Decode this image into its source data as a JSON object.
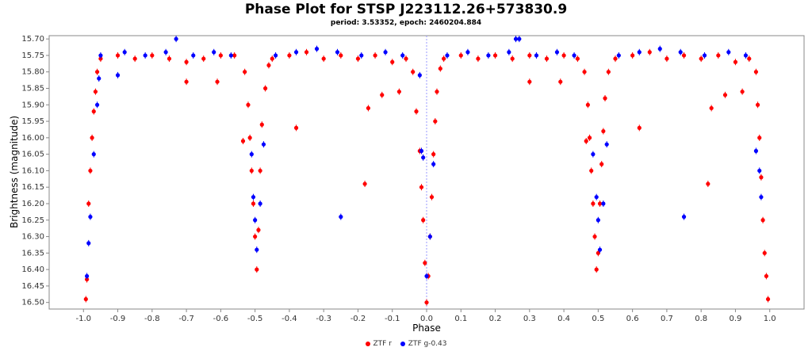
{
  "chart_data": {
    "type": "scatter",
    "title": "Phase Plot for STSP J223112.26+573830.9",
    "subtitle": "period: 3.53352, epoch: 2460204.884",
    "xlabel": "Phase",
    "ylabel": "Brightness (magnitude)",
    "xlim": [
      -1.1,
      1.1
    ],
    "ylim": [
      15.69,
      16.52
    ],
    "y_inverted": true,
    "x_ticks": [
      "-1.0",
      "-0.9",
      "-0.8",
      "-0.7",
      "-0.6",
      "-0.5",
      "-0.4",
      "-0.3",
      "-0.2",
      "-0.1",
      "0.0",
      "0.1",
      "0.2",
      "0.3",
      "0.4",
      "0.5",
      "0.6",
      "0.7",
      "0.8",
      "0.9",
      "1.0"
    ],
    "y_ticks": [
      "15.70",
      "15.75",
      "15.80",
      "15.85",
      "15.90",
      "15.95",
      "16.00",
      "16.05",
      "16.10",
      "16.15",
      "16.20",
      "16.25",
      "16.30",
      "16.35",
      "16.40",
      "16.45",
      "16.50"
    ],
    "reference_line_x": 0.0,
    "legend_position": "bottom-center",
    "series": [
      {
        "name": "ZTF r",
        "color": "#ff0000",
        "points": [
          [
            -0.95,
            15.76
          ],
          [
            -0.9,
            15.75
          ],
          [
            -0.85,
            15.76
          ],
          [
            -0.8,
            15.75
          ],
          [
            -0.75,
            15.76
          ],
          [
            -0.7,
            15.77
          ],
          [
            -0.65,
            15.76
          ],
          [
            -0.6,
            15.75
          ],
          [
            -0.56,
            15.75
          ],
          [
            -0.45,
            15.76
          ],
          [
            -0.4,
            15.75
          ],
          [
            -0.35,
            15.74
          ],
          [
            -0.3,
            15.76
          ],
          [
            -0.25,
            15.75
          ],
          [
            -0.2,
            15.76
          ],
          [
            -0.15,
            15.75
          ],
          [
            -0.1,
            15.77
          ],
          [
            -0.06,
            15.76
          ],
          [
            0.05,
            15.76
          ],
          [
            0.1,
            15.75
          ],
          [
            0.15,
            15.76
          ],
          [
            0.2,
            15.75
          ],
          [
            0.25,
            15.76
          ],
          [
            0.3,
            15.75
          ],
          [
            0.35,
            15.76
          ],
          [
            0.4,
            15.75
          ],
          [
            0.44,
            15.76
          ],
          [
            0.55,
            15.76
          ],
          [
            0.6,
            15.75
          ],
          [
            0.65,
            15.74
          ],
          [
            0.7,
            15.76
          ],
          [
            0.75,
            15.75
          ],
          [
            0.8,
            15.76
          ],
          [
            0.85,
            15.75
          ],
          [
            0.9,
            15.77
          ],
          [
            0.94,
            15.76
          ],
          [
            -0.993,
            16.49
          ],
          [
            -0.99,
            16.43
          ],
          [
            -0.985,
            16.2
          ],
          [
            -0.98,
            16.1
          ],
          [
            -0.975,
            16.0
          ],
          [
            -0.97,
            15.92
          ],
          [
            -0.965,
            15.86
          ],
          [
            -0.96,
            15.8
          ],
          [
            -0.53,
            15.8
          ],
          [
            -0.52,
            15.9
          ],
          [
            -0.515,
            16.0
          ],
          [
            -0.51,
            16.1
          ],
          [
            -0.505,
            16.2
          ],
          [
            -0.5,
            16.3
          ],
          [
            -0.495,
            16.4
          ],
          [
            -0.49,
            16.28
          ],
          [
            -0.485,
            16.1
          ],
          [
            -0.48,
            15.96
          ],
          [
            -0.47,
            15.85
          ],
          [
            -0.46,
            15.78
          ],
          [
            -0.04,
            15.8
          ],
          [
            -0.03,
            15.92
          ],
          [
            -0.02,
            16.04
          ],
          [
            -0.015,
            16.15
          ],
          [
            -0.01,
            16.25
          ],
          [
            -0.005,
            16.38
          ],
          [
            0.0,
            16.5
          ],
          [
            0.005,
            16.42
          ],
          [
            0.01,
            16.3
          ],
          [
            0.015,
            16.18
          ],
          [
            0.02,
            16.05
          ],
          [
            0.025,
            15.95
          ],
          [
            0.03,
            15.86
          ],
          [
            0.04,
            15.79
          ],
          [
            0.46,
            15.8
          ],
          [
            0.47,
            15.9
          ],
          [
            0.475,
            16.0
          ],
          [
            0.48,
            16.1
          ],
          [
            0.485,
            16.2
          ],
          [
            0.49,
            16.3
          ],
          [
            0.495,
            16.4
          ],
          [
            0.5,
            16.35
          ],
          [
            0.505,
            16.2
          ],
          [
            0.51,
            16.08
          ],
          [
            0.515,
            15.98
          ],
          [
            0.52,
            15.88
          ],
          [
            0.53,
            15.8
          ],
          [
            0.96,
            15.8
          ],
          [
            0.965,
            15.9
          ],
          [
            0.97,
            16.0
          ],
          [
            0.975,
            16.12
          ],
          [
            0.98,
            16.25
          ],
          [
            0.985,
            16.35
          ],
          [
            0.99,
            16.42
          ],
          [
            0.995,
            16.49
          ],
          [
            -0.7,
            15.83
          ],
          [
            -0.61,
            15.83
          ],
          [
            -0.535,
            16.01
          ],
          [
            -0.38,
            15.97
          ],
          [
            -0.18,
            16.14
          ],
          [
            -0.17,
            15.91
          ],
          [
            -0.13,
            15.87
          ],
          [
            -0.08,
            15.86
          ],
          [
            0.3,
            15.83
          ],
          [
            0.39,
            15.83
          ],
          [
            0.465,
            16.01
          ],
          [
            0.62,
            15.97
          ],
          [
            0.82,
            16.14
          ],
          [
            0.83,
            15.91
          ],
          [
            0.87,
            15.87
          ],
          [
            0.92,
            15.86
          ]
        ]
      },
      {
        "name": "ZTF g-0.43",
        "color": "#0000ff",
        "points": [
          [
            -0.95,
            15.75
          ],
          [
            -0.88,
            15.74
          ],
          [
            -0.82,
            15.75
          ],
          [
            -0.76,
            15.74
          ],
          [
            -0.68,
            15.75
          ],
          [
            -0.62,
            15.74
          ],
          [
            -0.57,
            15.75
          ],
          [
            -0.44,
            15.75
          ],
          [
            -0.38,
            15.74
          ],
          [
            -0.32,
            15.73
          ],
          [
            -0.26,
            15.74
          ],
          [
            -0.19,
            15.75
          ],
          [
            -0.12,
            15.74
          ],
          [
            -0.07,
            15.75
          ],
          [
            0.06,
            15.75
          ],
          [
            0.12,
            15.74
          ],
          [
            0.18,
            15.75
          ],
          [
            0.24,
            15.74
          ],
          [
            0.32,
            15.75
          ],
          [
            0.38,
            15.74
          ],
          [
            0.43,
            15.75
          ],
          [
            0.56,
            15.75
          ],
          [
            0.62,
            15.74
          ],
          [
            0.68,
            15.73
          ],
          [
            0.74,
            15.74
          ],
          [
            0.81,
            15.75
          ],
          [
            0.88,
            15.74
          ],
          [
            0.93,
            15.75
          ],
          [
            -0.99,
            16.42
          ],
          [
            -0.985,
            16.32
          ],
          [
            -0.98,
            16.24
          ],
          [
            -0.97,
            16.05
          ],
          [
            -0.96,
            15.9
          ],
          [
            -0.955,
            15.82
          ],
          [
            -0.51,
            16.05
          ],
          [
            -0.505,
            16.18
          ],
          [
            -0.5,
            16.25
          ],
          [
            -0.495,
            16.34
          ],
          [
            -0.485,
            16.2
          ],
          [
            -0.475,
            16.02
          ],
          [
            -0.015,
            16.04
          ],
          [
            -0.01,
            16.06
          ],
          [
            0.0,
            16.42
          ],
          [
            0.01,
            16.3
          ],
          [
            0.02,
            16.08
          ],
          [
            0.485,
            16.05
          ],
          [
            0.495,
            16.18
          ],
          [
            0.5,
            16.25
          ],
          [
            0.505,
            16.34
          ],
          [
            0.515,
            16.2
          ],
          [
            0.525,
            16.02
          ],
          [
            0.96,
            16.04
          ],
          [
            0.97,
            16.1
          ],
          [
            0.975,
            16.18
          ],
          [
            -0.9,
            15.81
          ],
          [
            -0.73,
            15.7
          ],
          [
            -0.25,
            16.24
          ],
          [
            -0.02,
            15.81
          ],
          [
            0.26,
            15.7
          ],
          [
            0.75,
            16.24
          ],
          [
            0.27,
            15.7
          ]
        ]
      }
    ]
  }
}
